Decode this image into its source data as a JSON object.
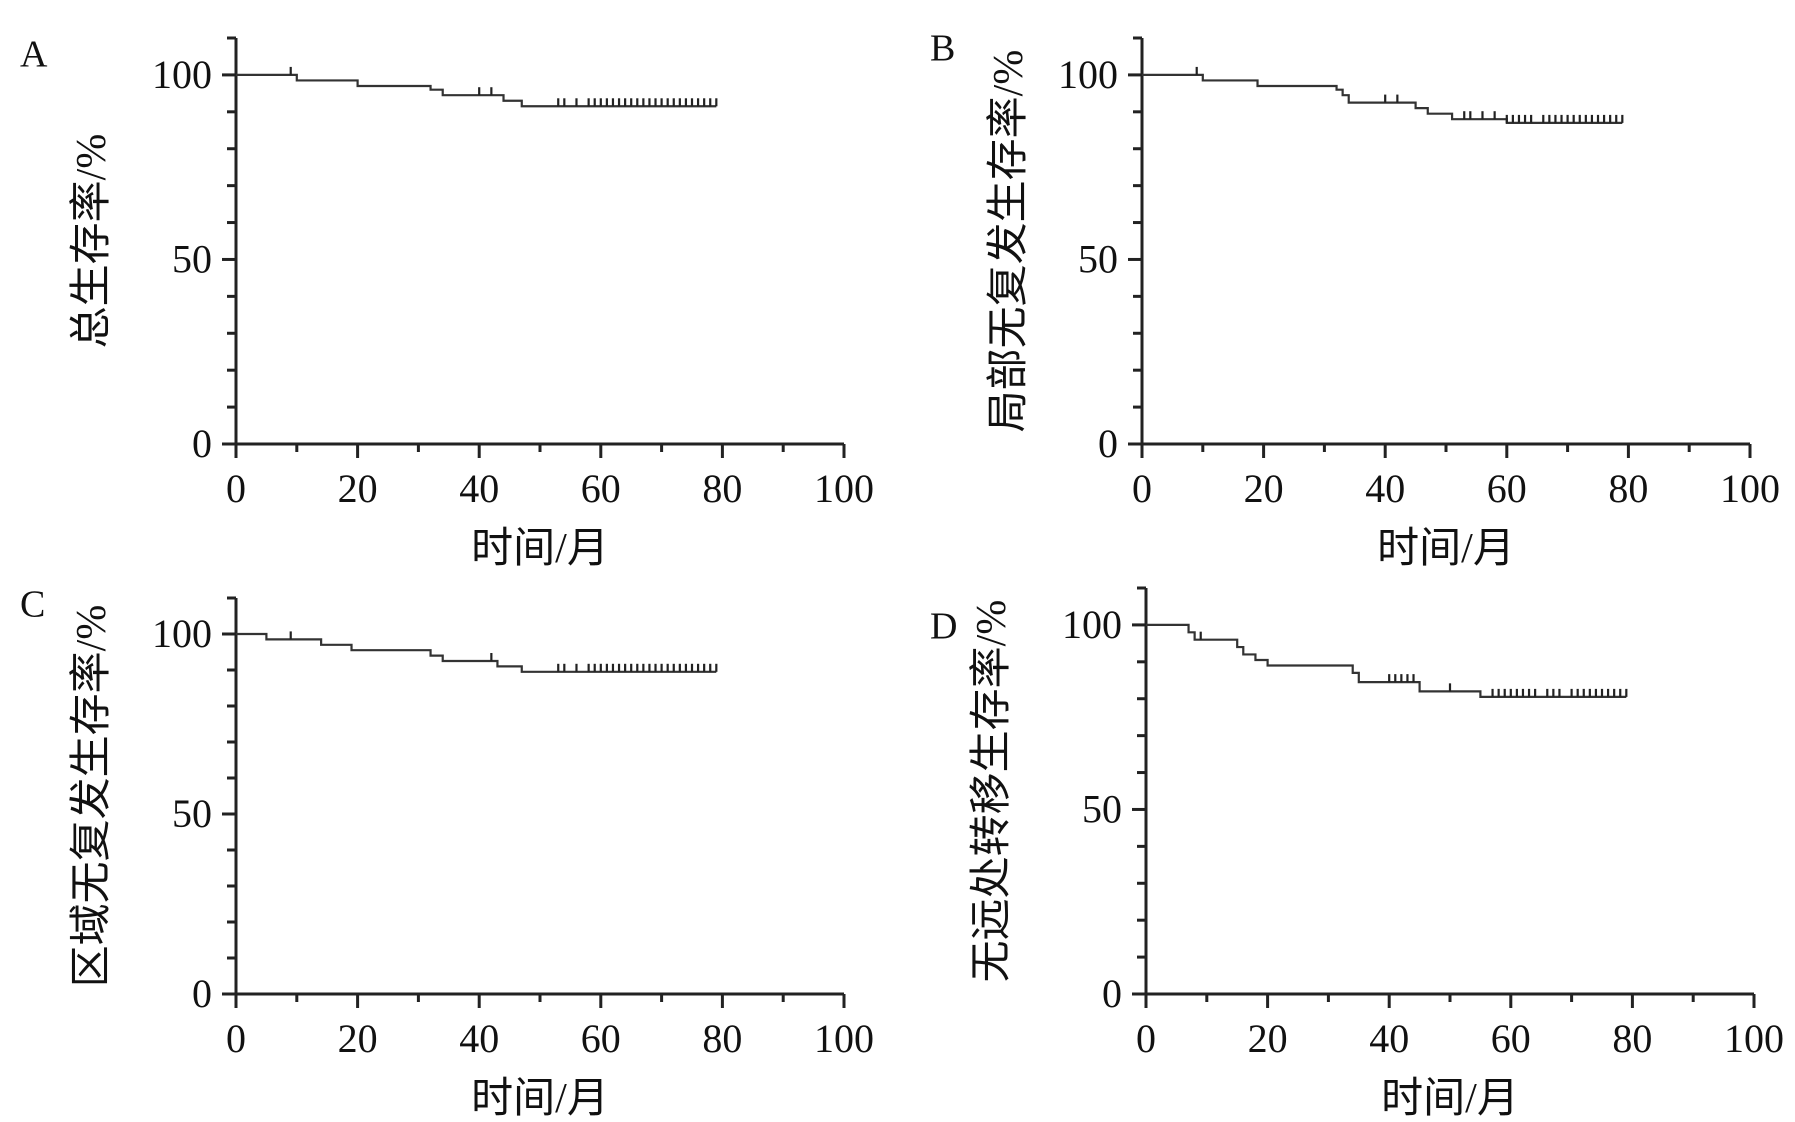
{
  "colors": {
    "axis": "#222222",
    "curve": "#333333",
    "background": "#ffffff"
  },
  "chart_data": [
    {
      "type": "line",
      "panel": "A",
      "xlabel": "时间/月",
      "ylabel": "总生存率/%",
      "xlim": [
        0,
        100
      ],
      "ylim": [
        0,
        110
      ],
      "xticks": [
        "0",
        "20",
        "40",
        "60",
        "80",
        "100"
      ],
      "yticks": [
        "0",
        "50",
        "100"
      ],
      "series": [
        {
          "steps": [
            [
              0,
              100
            ],
            [
              10,
              98.5
            ],
            [
              20,
              97
            ],
            [
              32,
              96
            ],
            [
              34,
              94.5
            ],
            [
              44,
              93
            ],
            [
              47,
              91.5
            ],
            [
              79,
              91.5
            ]
          ],
          "censored": [
            9,
            40,
            42,
            53,
            54,
            56,
            58,
            59,
            60,
            61,
            62,
            63,
            64,
            65,
            66,
            67,
            68,
            69,
            70,
            71,
            72,
            73,
            74,
            75,
            76,
            77,
            78,
            79
          ]
        }
      ]
    },
    {
      "type": "line",
      "panel": "B",
      "xlabel": "时间/月",
      "ylabel": "局部无复发生存率/%",
      "xlim": [
        0,
        100
      ],
      "ylim": [
        0,
        110
      ],
      "xticks": [
        "0",
        "20",
        "40",
        "60",
        "80",
        "100"
      ],
      "yticks": [
        "0",
        "50",
        "100"
      ],
      "series": [
        {
          "steps": [
            [
              0,
              100
            ],
            [
              10,
              98.5
            ],
            [
              19,
              97
            ],
            [
              32,
              96
            ],
            [
              33,
              94.5
            ],
            [
              34,
              92.5
            ],
            [
              45,
              91
            ],
            [
              47,
              89.5
            ],
            [
              51,
              88
            ],
            [
              60,
              87
            ],
            [
              79,
              87
            ]
          ],
          "censored": [
            9,
            40,
            42,
            53,
            54,
            56,
            58,
            60,
            61,
            62,
            63,
            64,
            66,
            67,
            68,
            69,
            70,
            71,
            72,
            73,
            74,
            75,
            76,
            77,
            78,
            79
          ]
        }
      ]
    },
    {
      "type": "line",
      "panel": "C",
      "xlabel": "时间/月",
      "ylabel": "区域无复发生存率/%",
      "xlim": [
        0,
        100
      ],
      "ylim": [
        0,
        110
      ],
      "xticks": [
        "0",
        "20",
        "40",
        "60",
        "80",
        "100"
      ],
      "yticks": [
        "0",
        "50",
        "100"
      ],
      "series": [
        {
          "steps": [
            [
              0,
              100
            ],
            [
              5,
              98.5
            ],
            [
              14,
              97
            ],
            [
              19,
              95.5
            ],
            [
              32,
              94
            ],
            [
              34,
              92.5
            ],
            [
              43,
              91
            ],
            [
              47,
              89.5
            ],
            [
              79,
              89.5
            ]
          ],
          "censored": [
            9,
            42,
            53,
            54,
            56,
            58,
            59,
            60,
            61,
            62,
            63,
            64,
            65,
            66,
            67,
            68,
            69,
            70,
            71,
            72,
            73,
            74,
            75,
            76,
            77,
            78,
            79
          ]
        }
      ]
    },
    {
      "type": "line",
      "panel": "D",
      "xlabel": "时间/月",
      "ylabel": "无远处转移生存率/%",
      "xlim": [
        0,
        100
      ],
      "ylim": [
        0,
        110
      ],
      "xticks": [
        "0",
        "20",
        "40",
        "60",
        "80",
        "100"
      ],
      "yticks": [
        "0",
        "50",
        "100"
      ],
      "series": [
        {
          "steps": [
            [
              0,
              100
            ],
            [
              7,
              98
            ],
            [
              8,
              96
            ],
            [
              15,
              94
            ],
            [
              16,
              92
            ],
            [
              18,
              90.5
            ],
            [
              20,
              89
            ],
            [
              34,
              87
            ],
            [
              35,
              84.5
            ],
            [
              45,
              82
            ],
            [
              55,
              80.5
            ],
            [
              79,
              80.5
            ]
          ],
          "censored": [
            9,
            40,
            41,
            42,
            43,
            44,
            50,
            57,
            58,
            59,
            60,
            61,
            62,
            63,
            64,
            66,
            67,
            68,
            70,
            71,
            72,
            73,
            74,
            75,
            76,
            77,
            78,
            79
          ]
        }
      ]
    }
  ]
}
